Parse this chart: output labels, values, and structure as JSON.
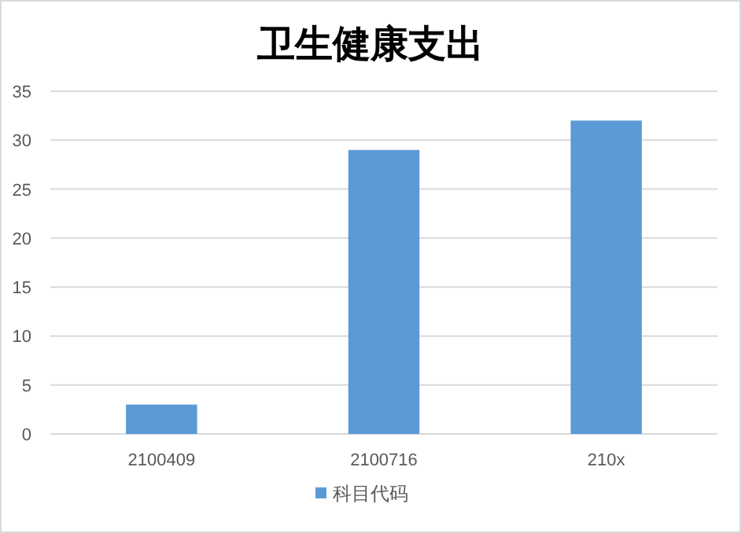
{
  "chart_data": {
    "type": "bar",
    "title": "卫生健康支出",
    "categories": [
      "2100409",
      "2100716",
      "210x"
    ],
    "series": [
      {
        "name": "科目代码",
        "color": "#5b9bd5",
        "values": [
          3,
          29,
          32
        ]
      }
    ],
    "ylim": [
      0,
      35
    ],
    "yticks": [
      0,
      5,
      10,
      15,
      20,
      25,
      30,
      35
    ],
    "grid": "y",
    "legend": "bottom"
  }
}
